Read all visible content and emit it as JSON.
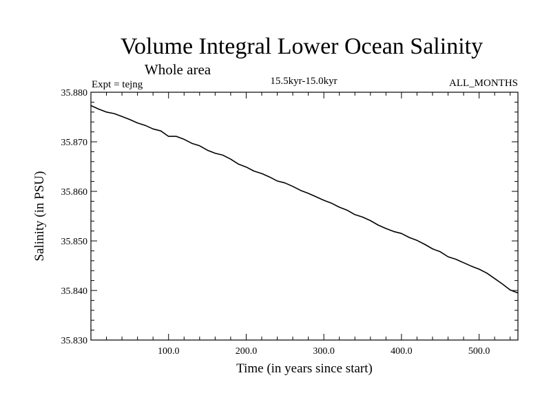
{
  "chart_data": {
    "type": "line",
    "title": "Volume Integral Lower Ocean Salinity",
    "subtitle": "Whole area",
    "experiment": "Expt = tejng",
    "period": "15.5kyr-15.0kyr",
    "months": "ALL_MONTHS",
    "xlabel": "Time (in years since start)",
    "ylabel": "Salinity (in PSU)",
    "xlim": [
      0,
      550
    ],
    "ylim": [
      35.83,
      35.88
    ],
    "x_ticks": [
      100,
      200,
      300,
      400,
      500
    ],
    "x_tick_labels": [
      "100.0",
      "200.0",
      "300.0",
      "400.0",
      "500.0"
    ],
    "y_ticks": [
      35.83,
      35.84,
      35.85,
      35.86,
      35.87,
      35.88
    ],
    "y_tick_labels": [
      "35.830",
      "35.840",
      "35.850",
      "35.860",
      "35.870",
      "35.880"
    ],
    "grid": false,
    "series": [
      {
        "name": "tejng",
        "color": "#000000",
        "x": [
          0,
          10,
          20,
          30,
          40,
          50,
          60,
          70,
          80,
          90,
          100,
          110,
          120,
          130,
          140,
          150,
          160,
          170,
          180,
          190,
          200,
          210,
          220,
          230,
          240,
          250,
          260,
          270,
          280,
          290,
          300,
          310,
          320,
          330,
          340,
          350,
          360,
          370,
          380,
          390,
          400,
          410,
          420,
          430,
          440,
          450,
          460,
          470,
          480,
          490,
          500,
          510,
          520,
          530,
          540,
          550
        ],
        "values": [
          35.8773,
          35.8766,
          35.876,
          35.8757,
          35.8751,
          35.8745,
          35.8738,
          35.8733,
          35.8726,
          35.8722,
          35.8711,
          35.8711,
          35.8705,
          35.8697,
          35.8692,
          35.8683,
          35.8677,
          35.8673,
          35.8665,
          35.8655,
          35.8649,
          35.8641,
          35.8636,
          35.8629,
          35.8621,
          35.8617,
          35.861,
          35.8602,
          35.8596,
          35.8589,
          35.8582,
          35.8576,
          35.8568,
          35.8562,
          35.8553,
          35.8548,
          35.8541,
          35.8532,
          35.8525,
          35.8519,
          35.8515,
          35.8507,
          35.8501,
          35.8493,
          35.8484,
          35.8478,
          35.8468,
          35.8463,
          35.8456,
          35.8449,
          35.8443,
          35.8435,
          35.8424,
          35.8413,
          35.8401,
          35.8395
        ]
      }
    ]
  }
}
